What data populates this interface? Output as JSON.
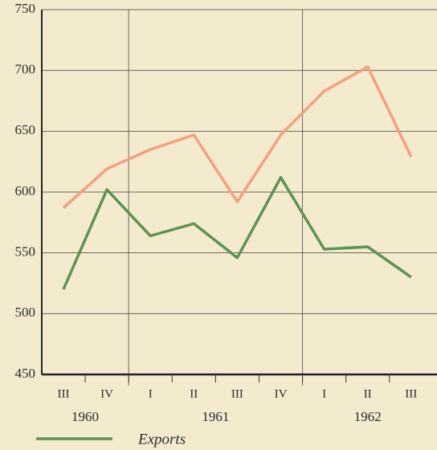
{
  "chart_data": {
    "type": "line",
    "categories": [
      "III",
      "IV",
      "I",
      "II",
      "III",
      "IV",
      "I",
      "II",
      "III"
    ],
    "category_groups": [
      {
        "label": "1960",
        "start": 0,
        "end": 1
      },
      {
        "label": "1961",
        "start": 2,
        "end": 5
      },
      {
        "label": "1962",
        "start": 6,
        "end": 8
      }
    ],
    "series": [
      {
        "color": "#f4a07e",
        "values": [
          587,
          619,
          635,
          647,
          592,
          647,
          683,
          703,
          629
        ]
      },
      {
        "name": "Exports",
        "color": "#5b9550",
        "values": [
          520,
          602,
          564,
          574,
          546,
          612,
          553,
          555,
          530
        ]
      }
    ],
    "ylim": [
      450,
      750
    ],
    "yticks": [
      450,
      500,
      550,
      600,
      650,
      700,
      750
    ],
    "grid": true,
    "legend": "bottom"
  }
}
